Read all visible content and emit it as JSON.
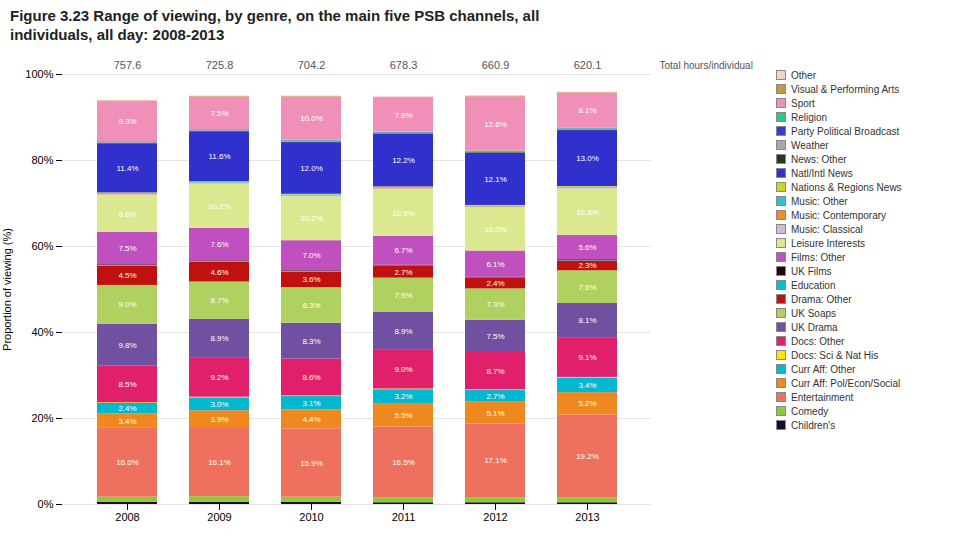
{
  "chart_data": {
    "type": "bar",
    "stacked": true,
    "title": "Figure 3.23 Range of viewing, by genre, on the main five PSB channels, all",
    "subtitle": "individuals, all day: 2008-2013",
    "ylabel": "Proportion of viewing (%)",
    "categories": [
      "2008",
      "2009",
      "2010",
      "2011",
      "2012",
      "2013"
    ],
    "ylim": [
      0,
      100
    ],
    "yticks": [
      {
        "value": 0,
        "label": "0%"
      },
      {
        "value": 20,
        "label": "20%"
      },
      {
        "value": 40,
        "label": "40%"
      },
      {
        "value": 60,
        "label": "60%"
      },
      {
        "value": 80,
        "label": "80%"
      },
      {
        "value": 100,
        "label": "100%"
      }
    ],
    "grid": true,
    "legend": "right",
    "totals": {
      "label": "Total hours/individual",
      "values": [
        757.6,
        725.8,
        704.2,
        678.3,
        660.9,
        620.1
      ]
    },
    "series": [
      {
        "name": "Children's",
        "color": "#1a0a2e",
        "values": [
          0.5,
          0.5,
          0.5,
          0.4,
          0.4,
          0.4
        ]
      },
      {
        "name": "Comedy",
        "color": "#90c838",
        "values": [
          1.2,
          1.3,
          1.2,
          1.1,
          1.2,
          1.2
        ]
      },
      {
        "name": "Entertainment",
        "color": "#f07060",
        "values": [
          16.0,
          16.1,
          15.9,
          16.5,
          17.1,
          19.2
        ],
        "data_labels": true,
        "value_labels": [
          "16.0%",
          "16.1%",
          "15.9%",
          "16.5%",
          "17.1%",
          "19.2%"
        ]
      },
      {
        "name": "Curr Aff: Pol/Econ/Social",
        "color": "#f08820",
        "values": [
          3.4,
          3.9,
          4.4,
          5.5,
          5.1,
          5.2
        ],
        "data_labels": true,
        "value_labels": [
          "3.4%",
          "3.9%",
          "4.4%",
          "5.5%",
          "5.1%",
          "5.2%"
        ]
      },
      {
        "name": "Curr Aff: Other",
        "color": "#00b8d0",
        "values": [
          2.4,
          3.0,
          3.1,
          3.2,
          2.7,
          3.4
        ],
        "data_labels": true,
        "value_labels": [
          "2.4%",
          "3.0%",
          "3.1%",
          "3.2%",
          "2.7%",
          "3.4%"
        ]
      },
      {
        "name": "Docs: Sci & Nat His",
        "color": "#f8e800",
        "values": [
          0.15,
          0.15,
          0.15,
          0.15,
          0.15,
          0.15
        ]
      },
      {
        "name": "Docs: Other",
        "color": "#e0206a",
        "values": [
          8.5,
          9.2,
          8.6,
          9.0,
          8.7,
          9.1
        ],
        "data_labels": true,
        "value_labels": [
          "8.5%",
          "9.2%",
          "8.6%",
          "9.0%",
          "8.7%",
          "9.1%"
        ]
      },
      {
        "name": "UK Drama",
        "color": "#7050a0",
        "values": [
          9.8,
          8.9,
          8.3,
          8.9,
          7.5,
          8.1
        ],
        "data_labels": true,
        "value_labels": [
          "9.8%",
          "8.9%",
          "8.3%",
          "8.9%",
          "7.5%",
          "8.1%"
        ]
      },
      {
        "name": "UK Soaps",
        "color": "#b0d060",
        "values": [
          9.0,
          8.7,
          8.3,
          7.9,
          7.3,
          7.6
        ],
        "data_labels": true,
        "value_labels": [
          "9.0%",
          "8.7%",
          "8.3%",
          "7.9%",
          "7.3%",
          "7.6%"
        ]
      },
      {
        "name": "Drama: Other",
        "color": "#c01010",
        "values": [
          4.5,
          4.6,
          3.6,
          2.7,
          2.4,
          2.3
        ],
        "data_labels": true,
        "value_labels": [
          "4.5%",
          "4.6%",
          "3.6%",
          "2.7%",
          "2.4%",
          "2.3%"
        ]
      },
      {
        "name": "Education",
        "color": "#00c0c8",
        "values": [
          0.15,
          0.15,
          0.15,
          0.15,
          0.15,
          0.15
        ]
      },
      {
        "name": "UK Films",
        "color": "#200808",
        "values": [
          0.15,
          0.15,
          0.15,
          0.15,
          0.15,
          0.15
        ]
      },
      {
        "name": "Films: Other",
        "color": "#c050c0",
        "values": [
          7.5,
          7.6,
          7.0,
          6.7,
          6.1,
          5.6
        ],
        "data_labels": true,
        "value_labels": [
          "7.5%",
          "7.6%",
          "7.0%",
          "6.7%",
          "6.1%",
          "5.6%"
        ]
      },
      {
        "name": "Leisure Interests",
        "color": "#dce890",
        "values": [
          8.6,
          10.2,
          10.2,
          10.9,
          10.0,
          10.8
        ],
        "data_labels": true,
        "value_labels": [
          "8.6%",
          "10.2%",
          "10.2%",
          "10.9%",
          "10.0%",
          "10.8%"
        ]
      },
      {
        "name": "Music: Classical",
        "color": "#d0b8e0",
        "values": [
          0.15,
          0.15,
          0.15,
          0.15,
          0.15,
          0.15
        ]
      },
      {
        "name": "Music: Contemporary",
        "color": "#f09020",
        "values": [
          0.15,
          0.15,
          0.15,
          0.15,
          0.15,
          0.15
        ]
      },
      {
        "name": "Music: Other",
        "color": "#30c0d8",
        "values": [
          0.15,
          0.15,
          0.15,
          0.15,
          0.15,
          0.15
        ]
      },
      {
        "name": "Nations & Regions News",
        "color": "#c8d820",
        "values": [
          0.15,
          0.15,
          0.15,
          0.15,
          0.15,
          0.15
        ]
      },
      {
        "name": "Natl/Intl News",
        "color": "#3030cc",
        "values": [
          11.4,
          11.6,
          12.0,
          12.2,
          12.1,
          13.0
        ],
        "data_labels": true,
        "value_labels": [
          "11.4%",
          "11.6%",
          "12.0%",
          "12.2%",
          "12.1%",
          "13.0%"
        ]
      },
      {
        "name": "News: Other",
        "color": "#283820",
        "values": [
          0.15,
          0.15,
          0.15,
          0.15,
          0.15,
          0.15
        ]
      },
      {
        "name": "Weather",
        "color": "#a8a8a8",
        "values": [
          0.15,
          0.15,
          0.15,
          0.15,
          0.15,
          0.15
        ]
      },
      {
        "name": "Party Political Broadcast",
        "color": "#3040cc",
        "values": [
          0.1,
          0.1,
          0.1,
          0.1,
          0.1,
          0.1
        ]
      },
      {
        "name": "Religion",
        "color": "#30c880",
        "values": [
          0.15,
          0.15,
          0.15,
          0.15,
          0.15,
          0.15
        ]
      },
      {
        "name": "Sport",
        "color": "#f090b8",
        "values": [
          9.3,
          7.5,
          10.0,
          7.9,
          12.6,
          8.1
        ],
        "data_labels": true,
        "value_labels": [
          "9.3%",
          "7.5%",
          "10.0%",
          "7.9%",
          "12.6%",
          "8.1%"
        ]
      },
      {
        "name": "Visual & Performing Arts",
        "color": "#c89840",
        "values": [
          0.15,
          0.15,
          0.15,
          0.15,
          0.15,
          0.15
        ]
      },
      {
        "name": "Other",
        "color": "#f8d0cc",
        "values": [
          0.15,
          0.15,
          0.15,
          0.15,
          0.15,
          0.15
        ]
      }
    ]
  }
}
